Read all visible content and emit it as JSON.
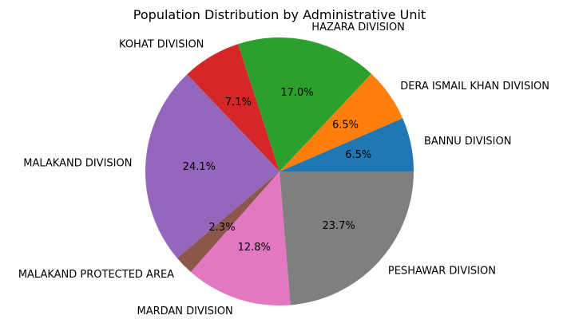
{
  "chart_data": {
    "type": "pie",
    "title": "Population Distribution by Administrative Unit",
    "start_angle_deg": 0,
    "direction": "counterclockwise",
    "legend": "none",
    "slices": [
      {
        "label": "BANNU DIVISION",
        "value": 6.5,
        "pct_text": "6.5%",
        "color": "#1f77b4"
      },
      {
        "label": "DERA ISMAIL KHAN DIVISION",
        "value": 6.5,
        "pct_text": "6.5%",
        "color": "#ff7f0e"
      },
      {
        "label": "HAZARA DIVISION",
        "value": 17.0,
        "pct_text": "17.0%",
        "color": "#2ca02c"
      },
      {
        "label": "KOHAT DIVISION",
        "value": 7.1,
        "pct_text": "7.1%",
        "color": "#d62728"
      },
      {
        "label": "MALAKAND DIVISION",
        "value": 24.1,
        "pct_text": "24.1%",
        "color": "#9467bd"
      },
      {
        "label": "MALAKAND PROTECTED AREA",
        "value": 2.3,
        "pct_text": "2.3%",
        "color": "#8c564b"
      },
      {
        "label": "MARDAN DIVISION",
        "value": 12.8,
        "pct_text": "12.8%",
        "color": "#e377c2"
      },
      {
        "label": "PESHAWAR DIVISION",
        "value": 23.7,
        "pct_text": "23.7%",
        "color": "#7f7f7f"
      }
    ]
  }
}
